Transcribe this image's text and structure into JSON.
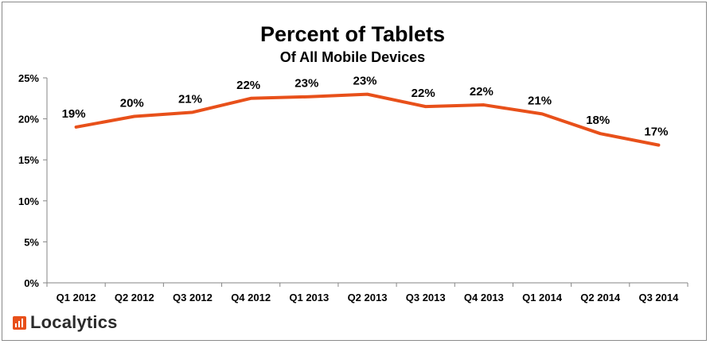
{
  "chart_data": {
    "type": "line",
    "title": "Percent of Tablets",
    "subtitle": "Of All Mobile Devices",
    "categories": [
      "Q1 2012",
      "Q2 2012",
      "Q3 2012",
      "Q4 2012",
      "Q1 2013",
      "Q2 2013",
      "Q3 2013",
      "Q4 2013",
      "Q1 2014",
      "Q2 2014",
      "Q3 2014"
    ],
    "series": [
      {
        "values": [
          19.0,
          20.3,
          20.8,
          22.5,
          22.7,
          23.0,
          21.5,
          21.7,
          20.6,
          18.2,
          16.8
        ],
        "labels": [
          "19%",
          "20%",
          "21%",
          "22%",
          "23%",
          "23%",
          "22%",
          "22%",
          "21%",
          "18%",
          "17%"
        ],
        "color": "#e8501a"
      }
    ],
    "ylim": [
      0,
      25
    ],
    "yticks": [
      0,
      5,
      10,
      15,
      20,
      25
    ],
    "ytick_labels": [
      "0%",
      "5%",
      "10%",
      "15%",
      "20%",
      "25%"
    ],
    "grid": false,
    "legend": "none"
  },
  "brand": {
    "name": "Localytics",
    "icon": "bar-chart-logo-icon",
    "color": "#e8501a"
  }
}
